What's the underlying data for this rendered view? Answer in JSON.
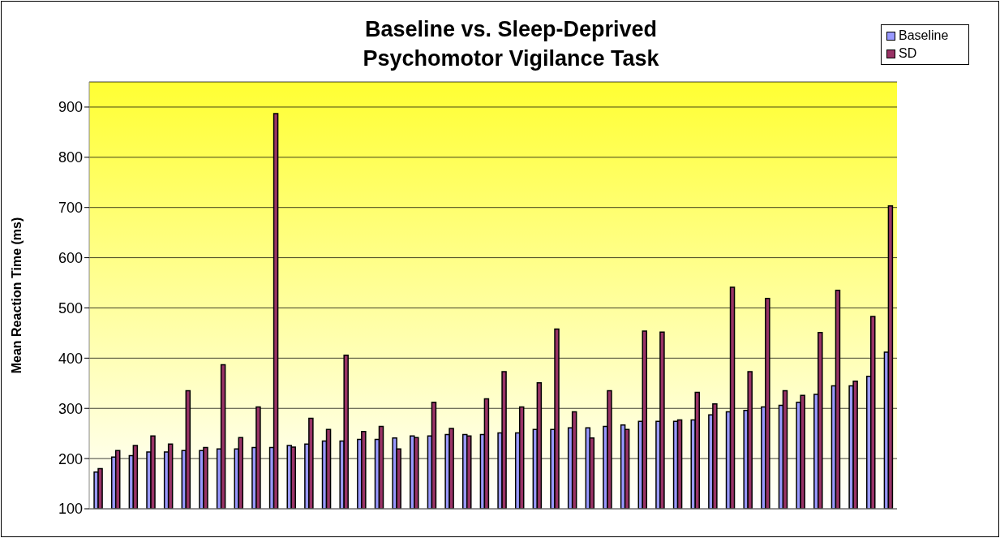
{
  "chart_data": {
    "type": "bar",
    "title": "Baseline vs. Sleep-Deprived\nPsychomotor Vigilance Task",
    "ylabel": "Mean Reaction Time (ms)",
    "categories": [
      null,
      null,
      null,
      null,
      null,
      null,
      null,
      null,
      null,
      null,
      null,
      null,
      null,
      null,
      null,
      null,
      null,
      null,
      null,
      null,
      null,
      null,
      null,
      null,
      null,
      null,
      null,
      null,
      null,
      null,
      null,
      null,
      null,
      null,
      null,
      null,
      null,
      null,
      null,
      null,
      null,
      null,
      null,
      null,
      null,
      null
    ],
    "series": [
      {
        "name": "Baseline",
        "color": "#9999ff",
        "values": [
          173,
          203,
          206,
          213,
          213,
          216,
          216,
          219,
          219,
          222,
          222,
          226,
          229,
          235,
          235,
          238,
          238,
          241,
          245,
          245,
          248,
          248,
          248,
          251,
          251,
          258,
          258,
          261,
          261,
          264,
          267,
          274,
          274,
          274,
          277,
          287,
          293,
          296,
          303,
          306,
          312,
          328,
          345,
          345,
          364,
          412
        ]
      },
      {
        "name": "SD",
        "color": "#993366",
        "values": [
          180,
          216,
          226,
          245,
          229,
          335,
          222,
          387,
          242,
          303,
          887,
          223,
          280,
          258,
          406,
          254,
          264,
          219,
          242,
          312,
          260,
          245,
          319,
          373,
          303,
          351,
          458,
          293,
          241,
          335,
          258,
          454,
          452,
          277,
          332,
          309,
          541,
          373,
          519,
          335,
          326,
          451,
          535,
          354,
          483,
          703
        ]
      }
    ],
    "ylim": [
      100,
      950
    ],
    "yticks": [
      100,
      200,
      300,
      400,
      500,
      600,
      700,
      800,
      900
    ],
    "grid": "y",
    "legend": "top right"
  }
}
